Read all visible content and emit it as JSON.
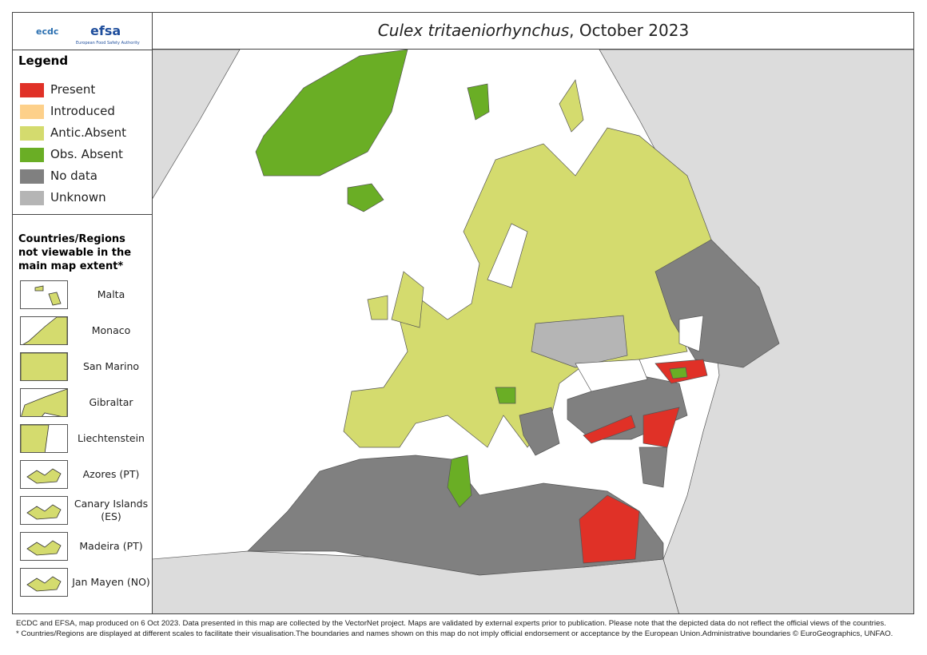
{
  "header": {
    "logos": [
      "ecdc",
      "efsa"
    ],
    "efsa_caption": "European Food Safety Authority",
    "title_species": "Culex tritaeniorhynchus",
    "title_rest": ", October 2023"
  },
  "legend": {
    "title": "Legend",
    "items": [
      {
        "label": "Present",
        "color": "#e03127"
      },
      {
        "label": "Introduced",
        "color": "#fdd08a"
      },
      {
        "label": "Antic.Absent",
        "color": "#d4db6e"
      },
      {
        "label": "Obs. Absent",
        "color": "#6aae25"
      },
      {
        "label": "No data",
        "color": "#808080"
      },
      {
        "label": "Unknown",
        "color": "#b5b5b5"
      }
    ]
  },
  "insets": {
    "title": "Countries/Regions not viewable in the main map extent*",
    "items": [
      "Malta",
      "Monaco",
      "San Marino",
      "Gibraltar",
      "Liechtenstein",
      "Azores (PT)",
      "Canary Islands (ES)",
      "Madeira (PT)",
      "Jan Mayen (NO)"
    ]
  },
  "footer": [
    "ECDC and EFSA, map produced on 6 Oct 2023. Data presented in this map are collected by the VectorNet project. Maps are validated by external experts prior to publication. Please note that the depicted data do not reflect the official views of the countries.",
    "* Countries/Regions are displayed at different scales to facilitate their visualisation.The boundaries and names shown on this map do not imply official endorsement or acceptance by the European Union.Administrative boundaries © EuroGeographics, UNFAO."
  ]
}
